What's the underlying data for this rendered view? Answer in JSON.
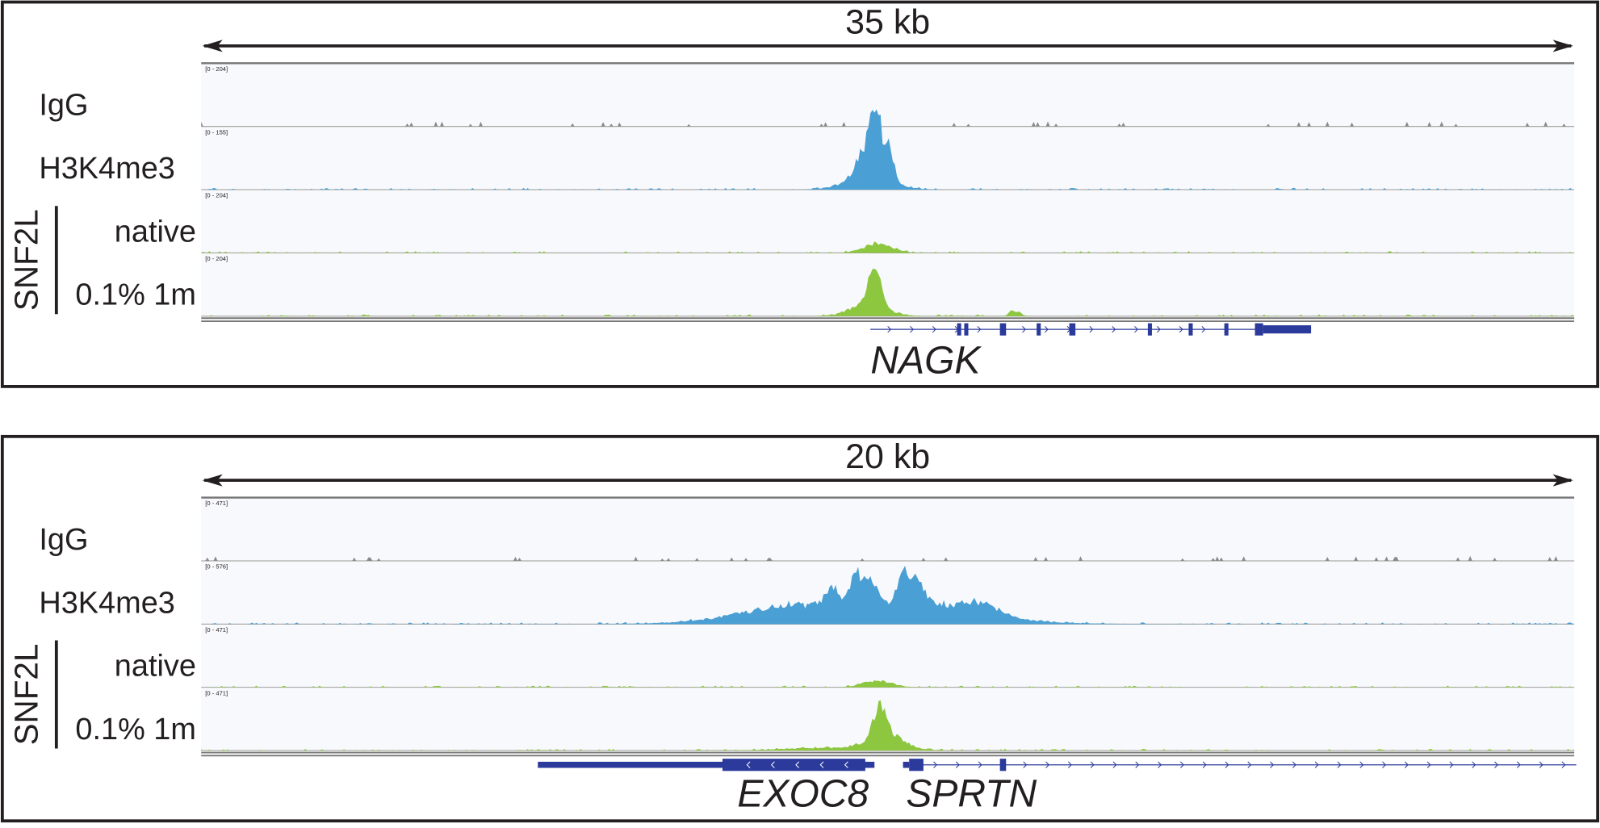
{
  "panels": [
    {
      "scale": "35 kb",
      "group_label": "SNF2L",
      "tracks": [
        {
          "label": "IgG",
          "range": "[0 - 204]"
        },
        {
          "label": "H3K4me3",
          "range": "[0 - 155]"
        },
        {
          "label": "native",
          "range": "[0 - 204]"
        },
        {
          "label": "0.1% 1m",
          "range": "[0 - 204]"
        }
      ],
      "genes": [
        "NAGK"
      ]
    },
    {
      "scale": "20 kb",
      "group_label": "SNF2L",
      "tracks": [
        {
          "label": "IgG",
          "range": "[0 - 471]"
        },
        {
          "label": "H3K4me3",
          "range": "[0 - 576]"
        },
        {
          "label": "native",
          "range": "[0 - 471]"
        },
        {
          "label": "0.1% 1m",
          "range": "[0 - 471]"
        }
      ],
      "genes": [
        "EXOC8",
        "SPRTN"
      ]
    }
  ]
}
